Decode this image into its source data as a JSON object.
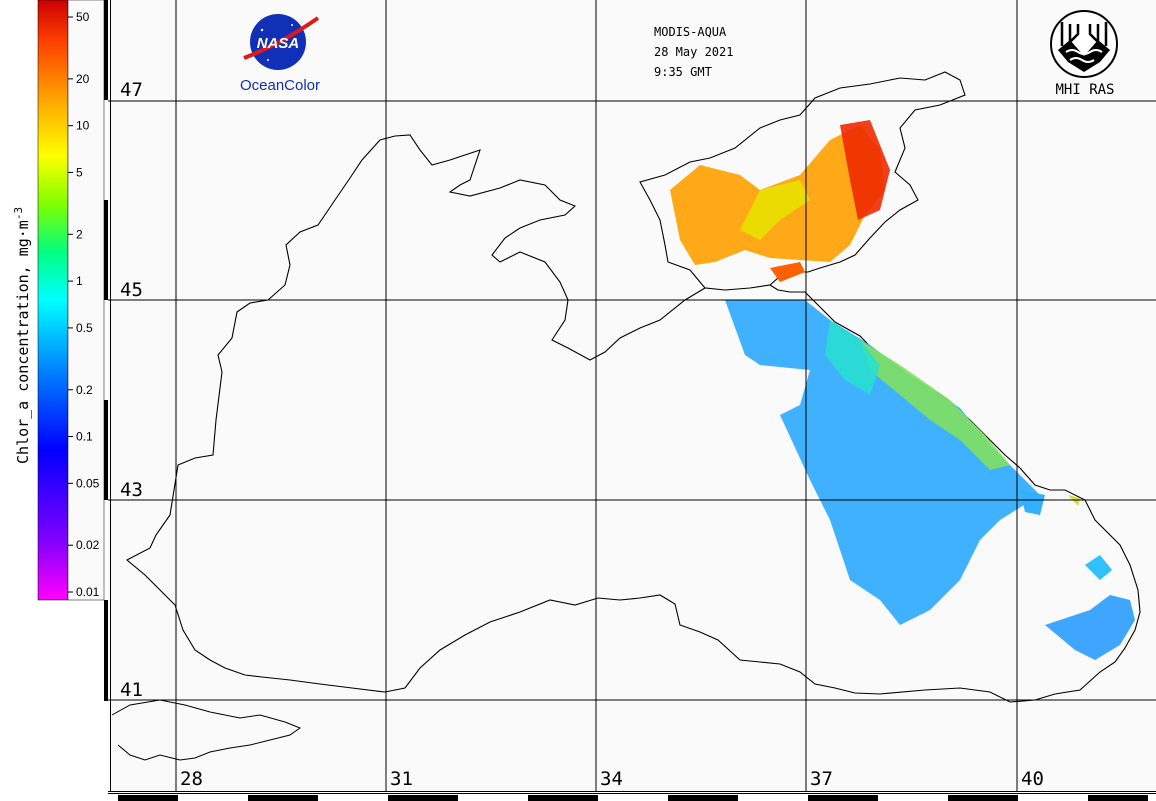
{
  "header": {
    "satellite": "MODIS-AQUA",
    "date": "28 May 2021",
    "time": "9:35 GMT"
  },
  "logos": {
    "nasa_text": "NASA",
    "oceancolor_text": "OceanColor",
    "mhi_text": "MHI RAS"
  },
  "colorbar": {
    "title": "Chlor_a concentration, mg·m",
    "title_exponent": "-3",
    "ticks": [
      "50",
      "20",
      "10",
      "5",
      "2",
      "1",
      "0.5",
      "0.2",
      "0.1",
      "0.05",
      "0.02",
      "0.01"
    ],
    "colors": [
      "#ff00ff",
      "#8000ff",
      "#0000ff",
      "#0080ff",
      "#00ffff",
      "#00ff80",
      "#80ff00",
      "#ffff00",
      "#ffa000",
      "#ff4000",
      "#cc0000"
    ]
  },
  "map": {
    "lat_labels": [
      "47",
      "45",
      "43",
      "41"
    ],
    "lon_labels": [
      "28",
      "31",
      "34",
      "37",
      "40"
    ],
    "land_color": "#fafafa",
    "coast_color": "#000000",
    "grid_color": "#000000"
  }
}
